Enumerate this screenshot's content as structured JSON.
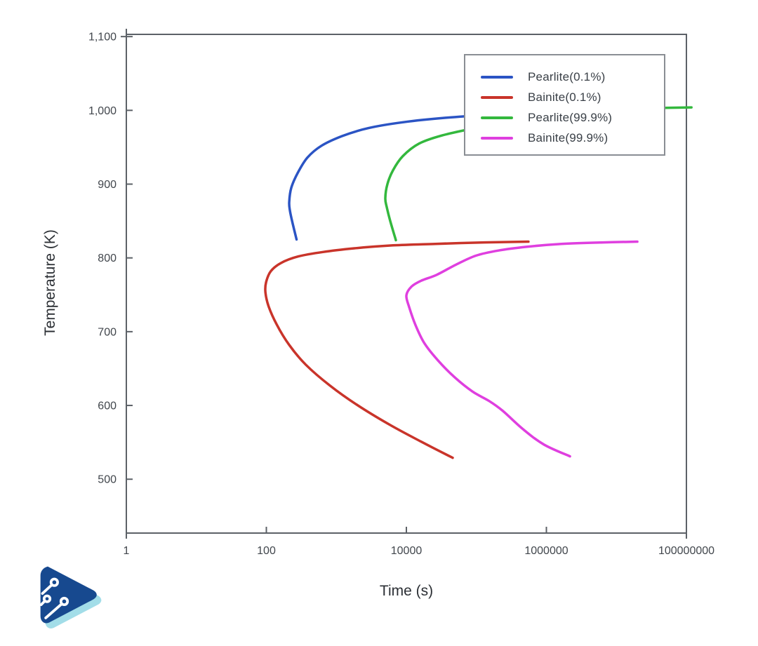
{
  "page": {
    "background": "#ffffff"
  },
  "chart_data": {
    "type": "line",
    "title": "",
    "xlabel": "Time (s)",
    "ylabel": "Temperature (K)",
    "x_scale": "log",
    "xlim": [
      1,
      100000000
    ],
    "ylim": [
      427,
      1103
    ],
    "grid": false,
    "legend_position": "top-right",
    "x_ticks": [
      {
        "value": 1,
        "label": "1"
      },
      {
        "value": 100,
        "label": "100"
      },
      {
        "value": 10000,
        "label": "10000"
      },
      {
        "value": 1000000,
        "label": "1000000"
      },
      {
        "value": 100000000,
        "label": "100000000"
      }
    ],
    "y_ticks": [
      {
        "value": 1100,
        "label": "1,100"
      },
      {
        "value": 1000,
        "label": "1,000"
      },
      {
        "value": 900,
        "label": "900"
      },
      {
        "value": 800,
        "label": "800"
      },
      {
        "value": 700,
        "label": "700"
      },
      {
        "value": 600,
        "label": "600"
      },
      {
        "value": 500,
        "label": "500"
      }
    ],
    "style": {
      "frame_color": "#5c6167",
      "tick_color": "#5c6167",
      "tick_label_color": "#41464c",
      "line_width": 3.5
    },
    "series": [
      {
        "name": "Pearlite(0.1%)",
        "color": "#2b54c4",
        "points": [
          [
            270,
            825
          ],
          [
            237,
            847
          ],
          [
            217,
            864
          ],
          [
            212,
            876
          ],
          [
            227,
            895
          ],
          [
            280,
            915
          ],
          [
            386,
            936
          ],
          [
            612,
            952
          ],
          [
            1200,
            965
          ],
          [
            2880,
            976
          ],
          [
            9100,
            984
          ],
          [
            36400,
            990
          ],
          [
            163000,
            994
          ],
          [
            653000,
            996
          ]
        ]
      },
      {
        "name": "Bainite(0.1%)",
        "color": "#c9342a",
        "points": [
          [
            554000,
            822
          ],
          [
            130000,
            821
          ],
          [
            25800,
            819
          ],
          [
            6460,
            817
          ],
          [
            1810,
            813
          ],
          [
            641,
            808
          ],
          [
            286,
            802
          ],
          [
            161,
            793
          ],
          [
            116,
            782
          ],
          [
            99,
            767
          ],
          [
            97,
            753
          ],
          [
            108,
            734
          ],
          [
            140,
            710
          ],
          [
            212,
            682
          ],
          [
            368,
            655
          ],
          [
            807,
            627
          ],
          [
            2030,
            600
          ],
          [
            5740,
            574
          ],
          [
            16200,
            551
          ],
          [
            45900,
            529
          ]
        ]
      },
      {
        "name": "Pearlite(99.9%)",
        "color": "#33b83d",
        "points": [
          [
            7080,
            824
          ],
          [
            5880,
            850
          ],
          [
            5240,
            869
          ],
          [
            5000,
            881
          ],
          [
            5360,
            900
          ],
          [
            6460,
            919
          ],
          [
            8910,
            938
          ],
          [
            15200,
            955
          ],
          [
            32400,
            966
          ],
          [
            85500,
            975
          ],
          [
            326000,
            985
          ],
          [
            1640000,
            995
          ],
          [
            8260000,
            1001
          ],
          [
            33000000,
            1003
          ],
          [
            118000000,
            1004
          ]
        ]
      },
      {
        "name": "Bainite(99.9%)",
        "color": "#df3fdf",
        "points": [
          [
            19900000,
            822
          ],
          [
            6560000,
            821
          ],
          [
            1640000,
            819
          ],
          [
            518000,
            815
          ],
          [
            206000,
            810
          ],
          [
            98200,
            803
          ],
          [
            51500,
            791
          ],
          [
            27000,
            777
          ],
          [
            16200,
            769
          ],
          [
            11800,
            761
          ],
          [
            10000,
            749
          ],
          [
            11000,
            733
          ],
          [
            13500,
            709
          ],
          [
            18200,
            684
          ],
          [
            28900,
            660
          ],
          [
            49200,
            638
          ],
          [
            87500,
            619
          ],
          [
            152000,
            606
          ],
          [
            236000,
            593
          ],
          [
            461000,
            568
          ],
          [
            922000,
            547
          ],
          [
            2170000,
            531
          ]
        ]
      }
    ]
  },
  "logo": {
    "name": "circuit-play-logo",
    "primary_color": "#17498f",
    "shadow_color": "#a2dde8",
    "trace_color": "#ffffff"
  }
}
